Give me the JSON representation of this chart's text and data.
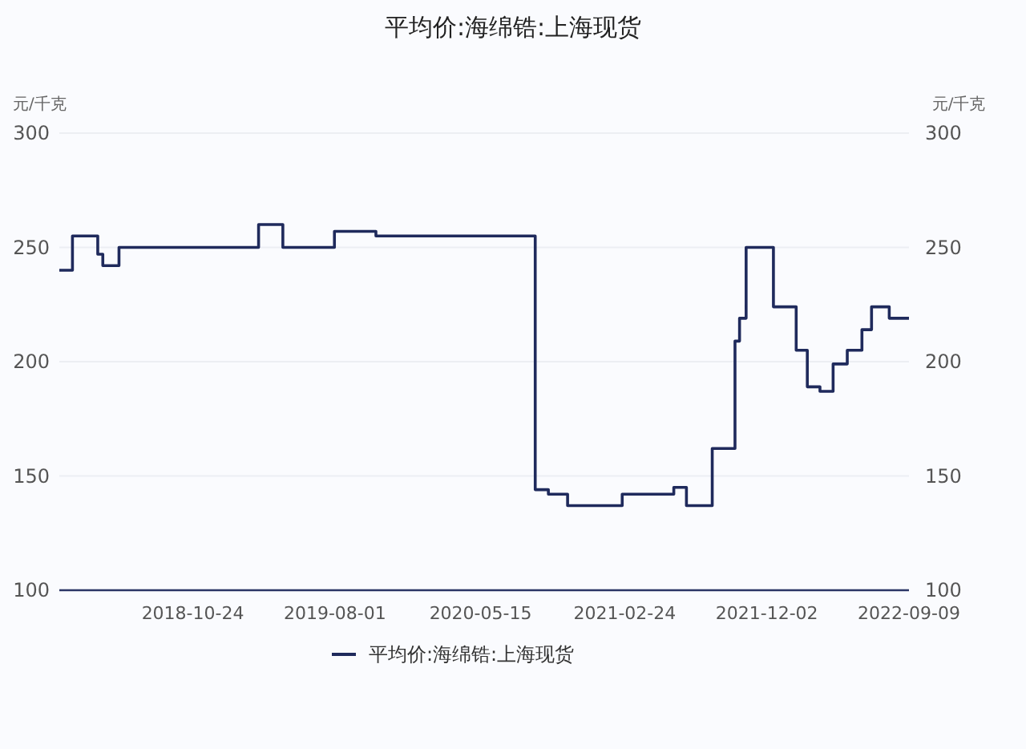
{
  "chart_data": {
    "type": "step",
    "title": "平均价:海绵锆:上海现货",
    "ylabel": "元/千克",
    "y2label": "元/千克",
    "x": [
      "2018-02-02",
      "2018-02-28",
      "2018-04-19",
      "2018-04-29",
      "2018-05-31",
      "2019-03-03",
      "2019-04-20",
      "2019-07-31",
      "2019-10-21",
      "2020-08-31",
      "2020-09-26",
      "2020-11-03",
      "2021-02-19",
      "2021-06-01",
      "2021-06-26",
      "2021-08-16",
      "2021-09-30",
      "2021-10-09",
      "2021-10-22",
      "2021-12-15",
      "2022-01-29",
      "2022-02-20",
      "2022-03-17",
      "2022-04-12",
      "2022-05-10",
      "2022-06-08",
      "2022-06-27",
      "2022-08-01",
      "2022-09-09"
    ],
    "series": [
      {
        "name": "平均价:海绵锆:上海现货",
        "color": "#1f2a5c",
        "values": [
          240,
          255,
          247,
          242,
          250,
          260,
          250,
          257,
          255,
          144,
          142,
          137,
          142,
          145,
          137,
          162,
          209,
          219,
          250,
          224,
          205,
          189,
          187,
          199,
          205,
          214,
          224,
          219,
          219
        ]
      }
    ],
    "xlim": [
      "2018-02-02",
      "2022-09-09"
    ],
    "xticks": [
      "2018-10-24",
      "2019-08-01",
      "2020-05-15",
      "2021-02-24",
      "2021-12-02",
      "2022-09-09"
    ],
    "ylim": [
      100,
      300
    ],
    "yticks": [
      100,
      150,
      200,
      250,
      300
    ],
    "y2lim": [
      100,
      300
    ],
    "y2ticks": [
      100,
      150,
      200,
      250,
      300
    ],
    "grid": "y",
    "legend": "bottom"
  }
}
